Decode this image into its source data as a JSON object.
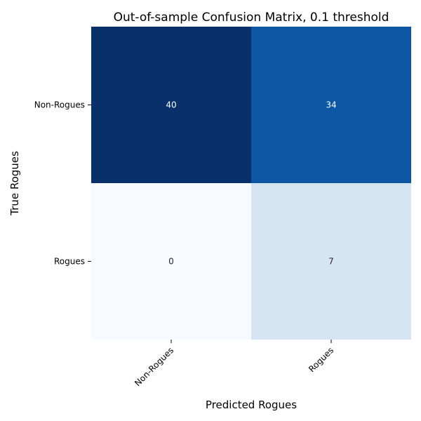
{
  "chart_data": {
    "type": "heatmap",
    "title": "Out-of-sample Confusion Matrix, 0.1 threshold",
    "xlabel": "Predicted Rogues",
    "ylabel": "True Rogues",
    "x_categories": [
      "Non-Rogues",
      "Rogues"
    ],
    "y_categories": [
      "Non-Rogues",
      "Rogues"
    ],
    "values": [
      [
        40,
        34
      ],
      [
        0,
        7
      ]
    ],
    "cell_colors": [
      [
        "#08306b",
        "#0b57a4"
      ],
      [
        "#f7fbff",
        "#d6e5f4"
      ]
    ],
    "annotation_colors": [
      [
        "#ffffff",
        "#ffffff"
      ],
      [
        "#262626",
        "#262626"
      ]
    ],
    "colormap": "Blues",
    "legend": "none",
    "grid": false
  }
}
